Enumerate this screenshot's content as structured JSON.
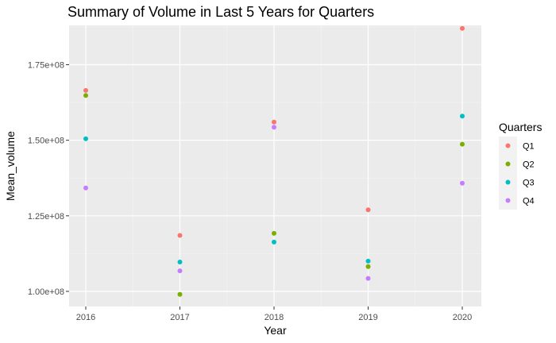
{
  "chart_data": {
    "type": "scatter",
    "title": "Summary of Volume in Last 5 Years for Quarters",
    "xlabel": "Year",
    "ylabel": "Mean_volume",
    "x": [
      "2016",
      "2017",
      "2018",
      "2019",
      "2020"
    ],
    "ylim": [
      95000000,
      188000000
    ],
    "yticks": [
      100000000,
      125000000,
      150000000,
      175000000
    ],
    "ytick_labels": [
      "1.00e+08",
      "1.25e+08",
      "1.50e+08",
      "1.75e+08"
    ],
    "grid": true,
    "legend": {
      "title": "Quarters",
      "position": "right"
    },
    "series": [
      {
        "name": "Q1",
        "color": "#F8766D",
        "values": [
          166500000,
          118500000,
          156000000,
          127000000,
          187000000
        ]
      },
      {
        "name": "Q2",
        "color": "#7CAE00",
        "values": [
          164800000,
          99000000,
          119200000,
          108200000,
          148700000
        ]
      },
      {
        "name": "Q3",
        "color": "#00BFC4",
        "values": [
          150500000,
          109700000,
          116300000,
          110000000,
          158000000
        ]
      },
      {
        "name": "Q4",
        "color": "#C77CFF",
        "values": [
          134200000,
          106800000,
          154300000,
          104300000,
          135800000
        ]
      }
    ]
  }
}
